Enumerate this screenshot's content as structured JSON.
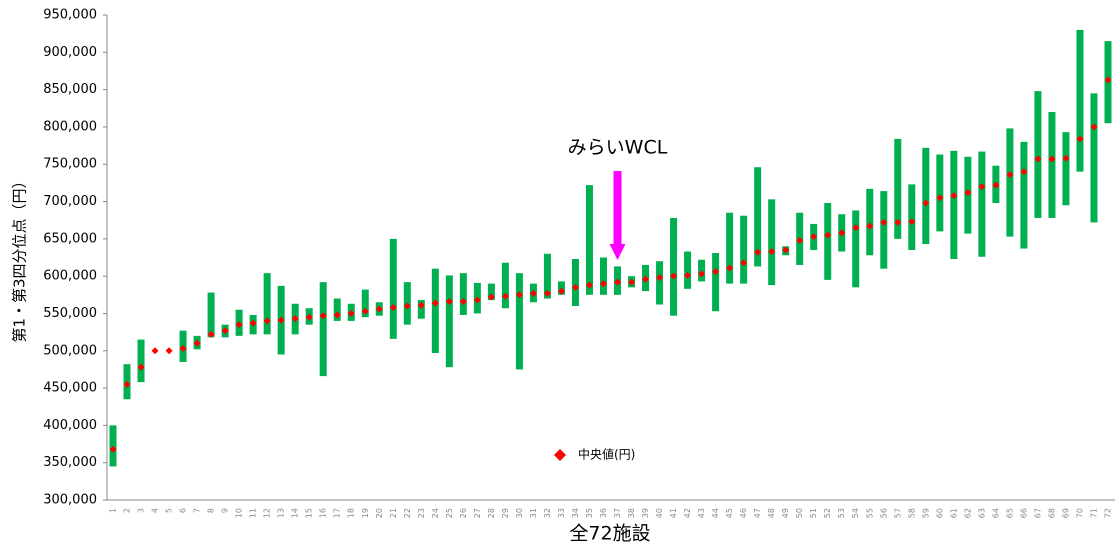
{
  "chart_data": {
    "type": "range",
    "y_label": "第1・第3四分位点（円）",
    "x_label": "全72施設",
    "annotation": "みらいWCL",
    "categories": [
      "1",
      "2",
      "3",
      "4",
      "5",
      "6",
      "7",
      "8",
      "9",
      "10",
      "11",
      "12",
      "13",
      "14",
      "15",
      "16",
      "17",
      "18",
      "19",
      "20",
      "21",
      "22",
      "23",
      "24",
      "25",
      "26",
      "27",
      "28",
      "29",
      "30",
      "31",
      "32",
      "33",
      "34",
      "35",
      "36",
      "37",
      "38",
      "39",
      "40",
      "41",
      "42",
      "43",
      "44",
      "45",
      "46",
      "47",
      "48",
      "49",
      "50",
      "51",
      "52",
      "53",
      "54",
      "55",
      "56",
      "57",
      "58",
      "59",
      "60",
      "61",
      "62",
      "63",
      "64",
      "65",
      "66",
      "67",
      "68",
      "69",
      "70",
      "71",
      "72"
    ],
    "series": [
      {
        "name": "中央値(円)",
        "color": "#ff0000",
        "values": [
          368000,
          455000,
          478000,
          500000,
          500000,
          503000,
          510000,
          522000,
          527000,
          535000,
          537000,
          540000,
          541000,
          543000,
          545000,
          547000,
          548000,
          550000,
          553000,
          556000,
          558000,
          560000,
          561000,
          564000,
          566000,
          566000,
          568000,
          572000,
          573000,
          575000,
          577000,
          577000,
          580000,
          585000,
          588000,
          590000,
          592000,
          592000,
          596000,
          598000,
          600000,
          601000,
          603000,
          606000,
          611000,
          618000,
          632000,
          633000,
          635000,
          648000,
          653000,
          655000,
          658000,
          665000,
          667000,
          672000,
          672000,
          673000,
          698000,
          705000,
          708000,
          712000,
          720000,
          722000,
          736000,
          740000,
          757000,
          757000,
          758000,
          784000,
          800000,
          863000
        ]
      }
    ],
    "ranges": {
      "color": "#00b050",
      "low": [
        345000,
        435000,
        458000,
        500000,
        500000,
        485000,
        502000,
        518000,
        518000,
        520000,
        522000,
        522000,
        495000,
        522000,
        535000,
        466000,
        540000,
        540000,
        545000,
        547000,
        516000,
        535000,
        543000,
        497000,
        478000,
        548000,
        550000,
        568000,
        557000,
        475000,
        565000,
        570000,
        575000,
        560000,
        575000,
        575000,
        575000,
        585000,
        580000,
        562000,
        547000,
        583000,
        593000,
        553000,
        590000,
        590000,
        613000,
        588000,
        628000,
        615000,
        635000,
        595000,
        633000,
        585000,
        628000,
        610000,
        650000,
        635000,
        643000,
        660000,
        623000,
        657000,
        626000,
        698000,
        653000,
        637000,
        678000,
        678000,
        695000,
        740000,
        672000,
        805000
      ],
      "high": [
        400000,
        482000,
        515000,
        500000,
        500000,
        527000,
        520000,
        578000,
        535000,
        555000,
        548000,
        604000,
        587000,
        563000,
        557000,
        592000,
        570000,
        563000,
        582000,
        565000,
        650000,
        592000,
        568000,
        610000,
        601000,
        604000,
        591000,
        590000,
        618000,
        604000,
        590000,
        630000,
        593000,
        623000,
        722000,
        625000,
        613000,
        600000,
        615000,
        620000,
        678000,
        633000,
        622000,
        631000,
        685000,
        681000,
        746000,
        703000,
        640000,
        685000,
        670000,
        698000,
        683000,
        688000,
        717000,
        714000,
        784000,
        723000,
        772000,
        763000,
        768000,
        760000,
        767000,
        748000,
        798000,
        780000,
        848000,
        820000,
        793000,
        930000,
        845000,
        915000
      ]
    },
    "ylim": [
      300000,
      950000
    ],
    "yticks": [
      {
        "value": 300000,
        "label": "300,000"
      },
      {
        "value": 350000,
        "label": "350,000"
      },
      {
        "value": 400000,
        "label": "400,000"
      },
      {
        "value": 450000,
        "label": "450,000"
      },
      {
        "value": 500000,
        "label": "500,000"
      },
      {
        "value": 550000,
        "label": "550,000"
      },
      {
        "value": 600000,
        "label": "600,000"
      },
      {
        "value": 650000,
        "label": "650,000"
      },
      {
        "value": 700000,
        "label": "700,000"
      },
      {
        "value": 750000,
        "label": "750,000"
      },
      {
        "value": 800000,
        "label": "800,000"
      },
      {
        "value": 850000,
        "label": "850,000"
      },
      {
        "value": 900000,
        "label": "900,000"
      },
      {
        "value": 950000,
        "label": "950,000"
      }
    ],
    "grid": false
  }
}
